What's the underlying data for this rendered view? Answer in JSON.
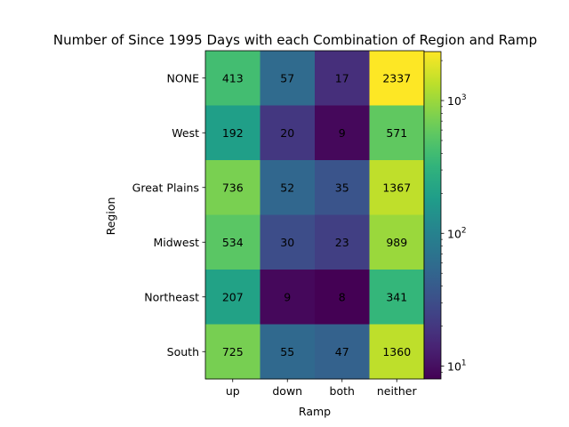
{
  "chart_data": {
    "type": "heatmap",
    "title": "Number of Since 1995 Days with each Combination of Region and Ramp",
    "xlabel": "Ramp",
    "ylabel": "Region",
    "x_categories": [
      "up",
      "down",
      "both",
      "neither"
    ],
    "y_categories": [
      "NONE",
      "West",
      "Great Plains",
      "Midwest",
      "Northeast",
      "South"
    ],
    "values": [
      [
        413,
        57,
        17,
        2337
      ],
      [
        192,
        20,
        9,
        571
      ],
      [
        736,
        52,
        35,
        1367
      ],
      [
        534,
        30,
        23,
        989
      ],
      [
        207,
        9,
        8,
        341
      ],
      [
        725,
        55,
        47,
        1360
      ]
    ],
    "color_scale": "log",
    "colormap": "viridis",
    "color_range": [
      8,
      2337
    ],
    "colorbar": {
      "major_ticks": [
        {
          "value": 10,
          "label": "10",
          "exp": "1"
        },
        {
          "value": 100,
          "label": "10",
          "exp": "2"
        },
        {
          "value": 1000,
          "label": "10",
          "exp": "3"
        }
      ],
      "minor_ticks": [
        9,
        20,
        30,
        40,
        50,
        60,
        70,
        80,
        90,
        200,
        300,
        400,
        500,
        600,
        700,
        800,
        900,
        2000
      ]
    },
    "grid": false
  }
}
